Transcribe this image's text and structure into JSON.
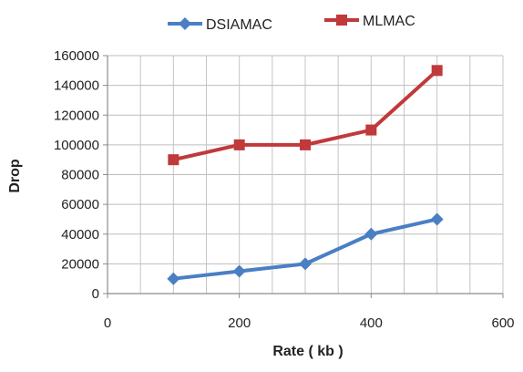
{
  "chart_data": {
    "type": "line",
    "xlabel": "Rate ( kb )",
    "ylabel": "Drop",
    "xlim": [
      0,
      600
    ],
    "ylim": [
      0,
      160000
    ],
    "xticks": [
      0,
      200,
      400,
      600
    ],
    "yticks": [
      0,
      20000,
      40000,
      60000,
      80000,
      100000,
      120000,
      140000,
      160000
    ],
    "grid": true,
    "legend_position": "top",
    "series": [
      {
        "name": "DSIAMAC",
        "color": "#4a7fc4",
        "marker": "diamond",
        "points": [
          {
            "x": 100,
            "y": 10000
          },
          {
            "x": 200,
            "y": 15000
          },
          {
            "x": 300,
            "y": 20000
          },
          {
            "x": 400,
            "y": 40000
          },
          {
            "x": 500,
            "y": 50000
          }
        ]
      },
      {
        "name": "MLMAC",
        "color": "#c0393b",
        "marker": "square",
        "points": [
          {
            "x": 100,
            "y": 90000
          },
          {
            "x": 200,
            "y": 100000
          },
          {
            "x": 300,
            "y": 100000
          },
          {
            "x": 400,
            "y": 110000
          },
          {
            "x": 500,
            "y": 150000
          }
        ]
      }
    ]
  }
}
